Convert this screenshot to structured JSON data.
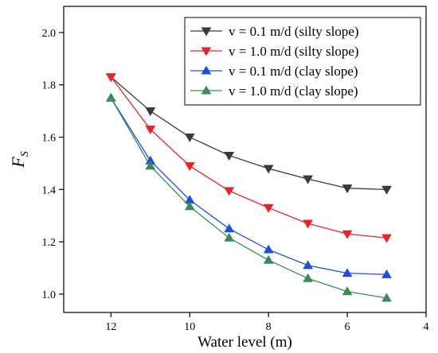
{
  "chart_data": {
    "type": "line",
    "xlabel": "Water level (m)",
    "ylabel_main": "F",
    "ylabel_sub": "S",
    "xlim": [
      13.2,
      4
    ],
    "ylim": [
      0.93,
      2.1
    ],
    "xticks": [
      12,
      10,
      8,
      6,
      4
    ],
    "yticks": [
      1.0,
      1.2,
      1.4,
      1.6,
      1.8,
      2.0
    ],
    "x": [
      12,
      11,
      10,
      9,
      8,
      7,
      6,
      5
    ],
    "grid": false,
    "legend_position": "top-right",
    "series": [
      {
        "name": "v = 0.1 m/d (silty slope)",
        "color": "#3a3a3a",
        "marker": "triangle-down",
        "values": [
          1.83,
          1.7,
          1.6,
          1.53,
          1.48,
          1.44,
          1.405,
          1.4
        ]
      },
      {
        "name": "v = 1.0 m/d (silty slope)",
        "color": "#e8232a",
        "marker": "triangle-down",
        "values": [
          1.83,
          1.63,
          1.49,
          1.395,
          1.33,
          1.27,
          1.23,
          1.215
        ]
      },
      {
        "name": "v = 0.1 m/d  (clay slope)",
        "color": "#1f4fd8",
        "marker": "triangle-up",
        "values": [
          1.75,
          1.51,
          1.36,
          1.25,
          1.17,
          1.11,
          1.08,
          1.075
        ]
      },
      {
        "name": "v = 1.0 m/d  (clay slope)",
        "color": "#3a8a5a",
        "marker": "triangle-up",
        "values": [
          1.75,
          1.49,
          1.335,
          1.215,
          1.13,
          1.06,
          1.01,
          0.985
        ]
      }
    ]
  }
}
